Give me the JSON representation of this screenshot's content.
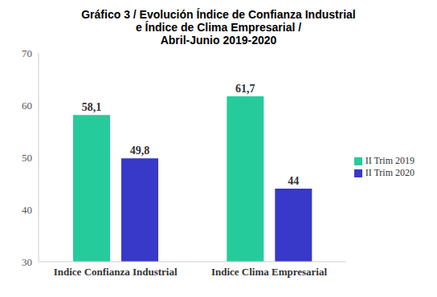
{
  "chart_data": {
    "type": "bar",
    "title": "Gráfico 3 / Evolución Índice de Confianza Industrial\ne Índice de Clima Empresarial /\nAbril-Junio 2019-2020",
    "categories": [
      "Indice Confianza Industrial",
      "Indice Clima Empresarial"
    ],
    "series": [
      {
        "name": "II Trim 2019",
        "color": "#26cb9b",
        "values": [
          58.1,
          61.7
        ],
        "value_labels": [
          "58,1",
          "61,7"
        ]
      },
      {
        "name": "II Trim 2020",
        "color": "#3838c9",
        "values": [
          49.8,
          44
        ],
        "value_labels": [
          "49,8",
          "44"
        ]
      }
    ],
    "ylim": [
      30,
      70
    ],
    "yticks": [
      30,
      40,
      50,
      60,
      70
    ],
    "grid": false,
    "legend": "right",
    "data_labels": true
  }
}
